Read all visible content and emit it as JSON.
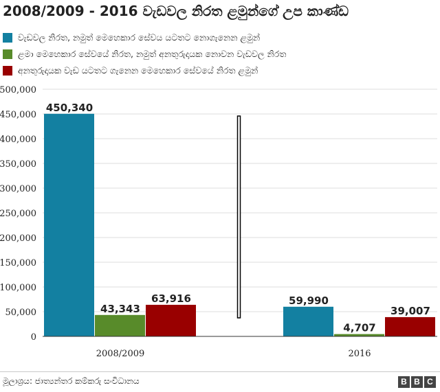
{
  "chart_data": {
    "type": "bar",
    "title": "2008/2009 - 2016 වැඩවල නිරත ළමුන්ගේ උප කාණ්ඩ",
    "categories": [
      "2008/2009",
      "2016"
    ],
    "series": [
      {
        "name": "වැඩවල නිරත, නමුත් මෙහෙකාර සේවය යටතට නොගැනෙන ළමුන්",
        "color": "#1380a1",
        "values": [
          450340,
          59990
        ],
        "labels": [
          "450,340",
          "59,990"
        ]
      },
      {
        "name": "ළමා මෙහෙකාර සේවයේ නිරත, නමුත් අනතුරුදායක නොවන වැඩවල නිරත",
        "color": "#588b2a",
        "values": [
          43343,
          4707
        ],
        "labels": [
          "43,343",
          "4,707"
        ]
      },
      {
        "name": "අනතුරුදායක වැඩ යටතට ගැනෙන මෙහෙකාර සේවයේ නිරත ළමුන්",
        "color": "#990000",
        "values": [
          63916,
          39007
        ],
        "labels": [
          "63,916",
          "39,007"
        ]
      }
    ],
    "yticks": [
      "0",
      "50,000",
      "100,000",
      "150,000",
      "200,000",
      "250,000",
      "300,000",
      "350,000",
      "400,000",
      "450,000",
      "500,000"
    ],
    "ylim": [
      0,
      500000
    ],
    "grid": true,
    "legend": "top-left",
    "axis_break": true
  },
  "footer": {
    "source": "මූලාශ්‍රය: ජාත්‍යන්තර කම්කරු සංවිධානය",
    "logo": [
      "B",
      "B",
      "C"
    ]
  }
}
